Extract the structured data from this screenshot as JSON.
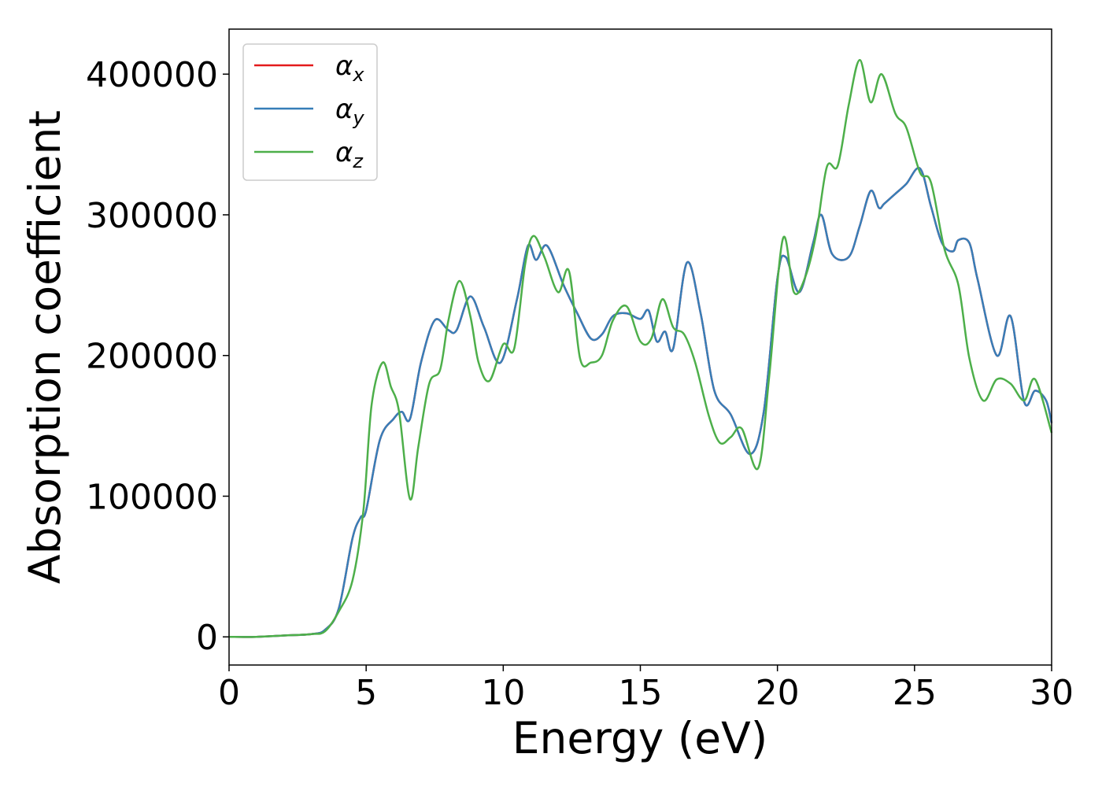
{
  "chart_data": {
    "type": "line",
    "xlabel": "Energy (eV)",
    "ylabel": "Absorption coefficient",
    "xlim": [
      0,
      30
    ],
    "ylim": [
      -20000,
      432000
    ],
    "x_ticks": [
      0,
      5,
      10,
      15,
      20,
      25,
      30
    ],
    "x_tick_labels": [
      "0",
      "5",
      "10",
      "15",
      "20",
      "25",
      "30"
    ],
    "y_ticks": [
      0,
      100000,
      200000,
      300000,
      400000
    ],
    "y_tick_labels": [
      "0",
      "100000",
      "200000",
      "300000",
      "400000"
    ],
    "grid": false,
    "legend_position": "top-left",
    "series": [
      {
        "name": "α_x",
        "symbol": "α",
        "subscript": "x",
        "color": "#e41a1c",
        "x": [
          0,
          1,
          2,
          3,
          3.5,
          4,
          4.5,
          4.8,
          5,
          5.5,
          6,
          6.3,
          6.6,
          7,
          7.5,
          8,
          8.3,
          8.8,
          9.3,
          9.9,
          10.5,
          10.9,
          11.2,
          11.6,
          12.2,
          12.7,
          13.2,
          13.6,
          14.0,
          14.5,
          15.0,
          15.3,
          15.6,
          15.9,
          16.2,
          16.7,
          17.2,
          17.7,
          18.3,
          19.0,
          19.5,
          20.0,
          20.3,
          20.8,
          21.3,
          21.6,
          22.0,
          22.6,
          23.0,
          23.4,
          23.7,
          23.9,
          24.3,
          24.7,
          25.2,
          25.6,
          26.0,
          26.4,
          26.6,
          27.0,
          27.3,
          28.0,
          28.5,
          29.0,
          29.4,
          29.8,
          30.0
        ],
        "values": [
          0,
          0,
          1000,
          2000,
          5000,
          20000,
          70000,
          85000,
          90000,
          140000,
          155000,
          160000,
          155000,
          195000,
          225000,
          218000,
          218000,
          242000,
          220000,
          195000,
          240000,
          278000,
          268000,
          278000,
          250000,
          230000,
          212000,
          215000,
          228000,
          230000,
          226000,
          232000,
          210000,
          217000,
          205000,
          266000,
          230000,
          175000,
          158000,
          130000,
          160000,
          255000,
          270000,
          245000,
          280000,
          300000,
          272000,
          270000,
          292000,
          317000,
          305000,
          308000,
          315000,
          322000,
          333000,
          306000,
          280000,
          274000,
          282000,
          280000,
          254000,
          200000,
          228000,
          167000,
          175000,
          168000,
          152000
        ]
      },
      {
        "name": "α_y",
        "symbol": "α",
        "subscript": "y",
        "color": "#377eb8",
        "x": [
          0,
          1,
          2,
          3,
          3.5,
          4,
          4.5,
          4.8,
          5,
          5.5,
          6,
          6.3,
          6.6,
          7,
          7.5,
          8,
          8.3,
          8.8,
          9.3,
          9.9,
          10.5,
          10.9,
          11.2,
          11.6,
          12.2,
          12.7,
          13.2,
          13.6,
          14.0,
          14.5,
          15.0,
          15.3,
          15.6,
          15.9,
          16.2,
          16.7,
          17.2,
          17.7,
          18.3,
          19.0,
          19.5,
          20.0,
          20.3,
          20.8,
          21.3,
          21.6,
          22.0,
          22.6,
          23.0,
          23.4,
          23.7,
          23.9,
          24.3,
          24.7,
          25.2,
          25.6,
          26.0,
          26.4,
          26.6,
          27.0,
          27.3,
          28.0,
          28.5,
          29.0,
          29.4,
          29.8,
          30.0
        ],
        "values": [
          0,
          0,
          1000,
          2000,
          5000,
          20000,
          70000,
          85000,
          90000,
          140000,
          155000,
          160000,
          155000,
          195000,
          225000,
          218000,
          218000,
          242000,
          220000,
          195000,
          240000,
          278000,
          268000,
          278000,
          250000,
          230000,
          212000,
          215000,
          228000,
          230000,
          226000,
          232000,
          210000,
          217000,
          205000,
          266000,
          230000,
          175000,
          158000,
          130000,
          160000,
          255000,
          270000,
          245000,
          280000,
          300000,
          272000,
          270000,
          292000,
          317000,
          305000,
          308000,
          315000,
          322000,
          333000,
          306000,
          280000,
          274000,
          282000,
          280000,
          254000,
          200000,
          228000,
          167000,
          175000,
          168000,
          152000
        ]
      },
      {
        "name": "α_z",
        "symbol": "α",
        "subscript": "z",
        "color": "#4daf4a",
        "x": [
          0,
          1,
          2,
          3,
          3.5,
          4,
          4.5,
          4.9,
          5.2,
          5.6,
          5.9,
          6.2,
          6.6,
          6.9,
          7.3,
          7.7,
          8.0,
          8.4,
          8.8,
          9.1,
          9.5,
          10.0,
          10.4,
          10.8,
          11.1,
          11.5,
          12.0,
          12.4,
          12.8,
          13.2,
          13.6,
          14.0,
          14.5,
          15.0,
          15.4,
          15.8,
          16.2,
          16.6,
          17.0,
          17.5,
          17.9,
          18.3,
          18.7,
          19.3,
          19.7,
          20.2,
          20.6,
          21.0,
          21.4,
          21.8,
          22.2,
          22.6,
          23.0,
          23.4,
          23.8,
          24.3,
          24.7,
          25.2,
          25.6,
          26.1,
          26.6,
          27.0,
          27.5,
          28.0,
          28.5,
          29.0,
          29.4,
          30.0
        ],
        "values": [
          0,
          0,
          1000,
          2000,
          4000,
          18000,
          40000,
          90000,
          165000,
          195000,
          178000,
          160000,
          98000,
          135000,
          180000,
          190000,
          225000,
          253000,
          228000,
          195000,
          182000,
          208000,
          205000,
          265000,
          285000,
          270000,
          245000,
          260000,
          198000,
          195000,
          200000,
          225000,
          235000,
          210000,
          212000,
          240000,
          220000,
          215000,
          195000,
          157000,
          138000,
          142000,
          148000,
          120000,
          185000,
          283000,
          245000,
          255000,
          285000,
          334000,
          335000,
          378000,
          410000,
          380000,
          400000,
          372000,
          362000,
          330000,
          323000,
          275000,
          250000,
          198000,
          168000,
          183000,
          180000,
          168000,
          183000,
          145000
        ]
      }
    ]
  }
}
